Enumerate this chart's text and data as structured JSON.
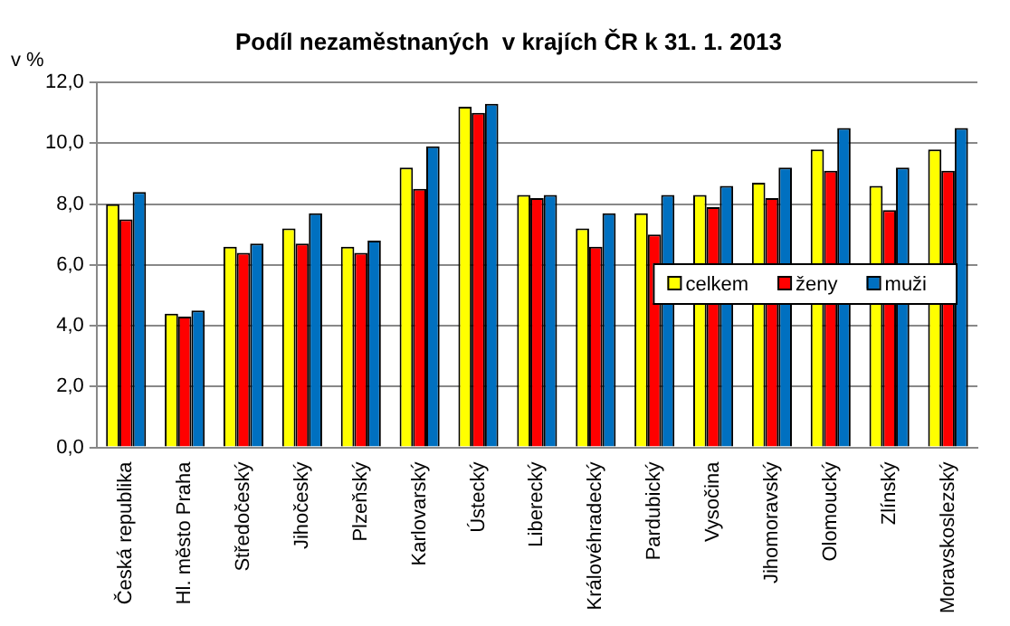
{
  "chart_data": {
    "type": "bar",
    "title": "Podíl nezaměstnaných  v krajích ČR k 31. 1. 2013",
    "ylabel": "v %",
    "categories": [
      "Česká republika",
      "Hl. město Praha",
      "Středočeský",
      "Jihočeský",
      "Plzeňský",
      "Karlovarský",
      "Ústecký",
      "Liberecký",
      "Královéhradecký",
      "Pardubický",
      "Vysočina",
      "Jihomoravský",
      "Olomoucký",
      "Zlínský",
      "Moravskoslezský"
    ],
    "series": [
      {
        "name": "celkem",
        "color": "#ffff00",
        "values": [
          8.0,
          4.4,
          6.6,
          7.2,
          6.6,
          9.2,
          11.2,
          8.3,
          7.2,
          7.7,
          8.3,
          8.7,
          9.8,
          8.6,
          9.8
        ]
      },
      {
        "name": "ženy",
        "color": "#ff0000",
        "values": [
          7.5,
          4.3,
          6.4,
          6.7,
          6.4,
          8.5,
          11.0,
          8.2,
          6.6,
          7.0,
          7.9,
          8.2,
          9.1,
          7.8,
          9.1
        ]
      },
      {
        "name": "muži",
        "color": "#0070c0",
        "values": [
          8.4,
          4.5,
          6.7,
          7.7,
          6.8,
          9.9,
          11.3,
          8.3,
          7.7,
          8.3,
          8.6,
          9.2,
          10.5,
          9.2,
          10.5
        ]
      }
    ],
    "ylim": [
      0,
      12
    ],
    "yticks": [
      {
        "value": 0,
        "label": "0,0"
      },
      {
        "value": 2,
        "label": "2,0"
      },
      {
        "value": 4,
        "label": "4,0"
      },
      {
        "value": 6,
        "label": "6,0"
      },
      {
        "value": 8,
        "label": "8,0"
      },
      {
        "value": 10,
        "label": "10,0"
      },
      {
        "value": 12,
        "label": "12,0"
      }
    ],
    "grid": "y",
    "legend": "right"
  }
}
